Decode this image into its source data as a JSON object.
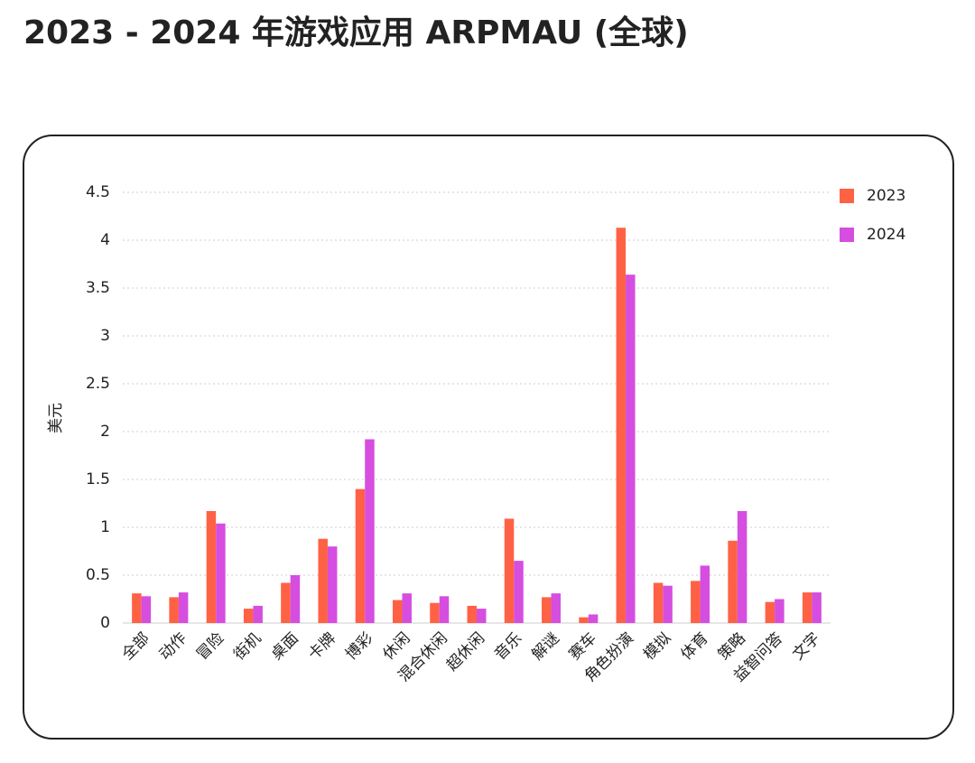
{
  "chart_data": {
    "type": "bar",
    "title": "2023 - 2024 年游戏应用 ARPMAU (全球)",
    "y_label": "美元",
    "categories": [
      "全部",
      "动作",
      "冒险",
      "街机",
      "桌面",
      "卡牌",
      "博彩",
      "休闲",
      "混合休闲",
      "超休闲",
      "音乐",
      "解谜",
      "赛车",
      "角色扮演",
      "模拟",
      "体育",
      "策略",
      "益智问答",
      "文字"
    ],
    "series": [
      {
        "name": "2023",
        "color": "#ff6145",
        "values": [
          0.31,
          0.27,
          1.17,
          0.15,
          0.42,
          0.88,
          1.4,
          0.24,
          0.21,
          0.18,
          1.09,
          0.27,
          0.06,
          4.13,
          0.42,
          0.44,
          0.86,
          0.22,
          0.32
        ]
      },
      {
        "name": "2024",
        "color": "#d54ee0",
        "values": [
          0.28,
          0.32,
          1.04,
          0.18,
          0.5,
          0.8,
          1.92,
          0.31,
          0.28,
          0.15,
          0.65,
          0.31,
          0.09,
          3.64,
          0.39,
          0.6,
          1.17,
          0.25,
          0.32
        ]
      }
    ],
    "ylim": [
      0,
      4.5
    ],
    "yticks": [
      0,
      0.5,
      1,
      1.5,
      2,
      2.5,
      3,
      3.5,
      4,
      4.5
    ],
    "grid": true,
    "legend": "top-right"
  }
}
